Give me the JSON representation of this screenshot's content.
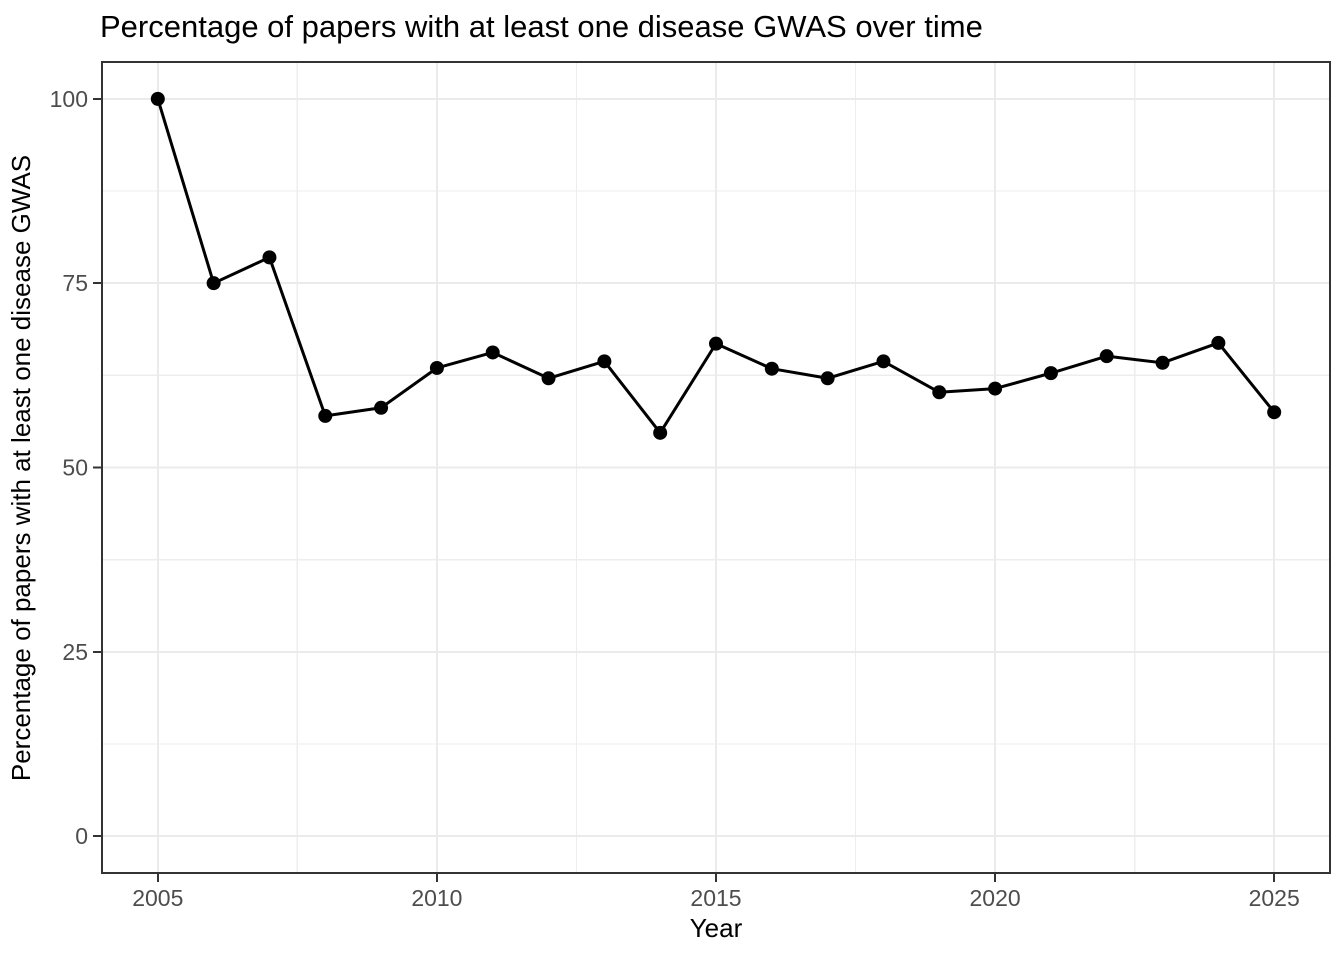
{
  "title": "Percentage of papers with at least one disease GWAS over time",
  "chart_data": {
    "type": "line",
    "title": "Percentage of papers with at least one disease GWAS over time",
    "xlabel": "Year",
    "ylabel": "Percentage of papers with at least one disease GWAS",
    "x": [
      2005,
      2006,
      2007,
      2008,
      2009,
      2010,
      2011,
      2012,
      2013,
      2014,
      2015,
      2016,
      2017,
      2018,
      2019,
      2020,
      2021,
      2022,
      2023,
      2024,
      2025
    ],
    "values": [
      100,
      75,
      78.5,
      57,
      58.1,
      63.5,
      65.6,
      62.1,
      64.4,
      54.7,
      66.8,
      63.4,
      62.1,
      64.4,
      60.2,
      60.7,
      62.8,
      65.1,
      64.2,
      66.9,
      57.5
    ],
    "xlim": [
      2004,
      2026
    ],
    "ylim": [
      -5,
      105
    ],
    "x_ticks": [
      2005,
      2010,
      2015,
      2020,
      2025
    ],
    "y_ticks": [
      0,
      25,
      50,
      75,
      100
    ],
    "x_minor_ticks": [
      2007.5,
      2012.5,
      2017.5,
      2022.5
    ],
    "y_minor_ticks": [
      12.5,
      37.5,
      62.5,
      87.5
    ],
    "grid": "on",
    "legend": "none",
    "marker": "filled-circle"
  },
  "colors": {
    "background": "#ffffff",
    "panel_background": "#ffffff",
    "grid_major": "#ebebeb",
    "grid_minor": "#ededed",
    "panel_border": "#333333",
    "tick": "#333333",
    "tick_label": "#4d4d4d",
    "line": "#000000",
    "point": "#000000",
    "title_text": "#000000"
  }
}
